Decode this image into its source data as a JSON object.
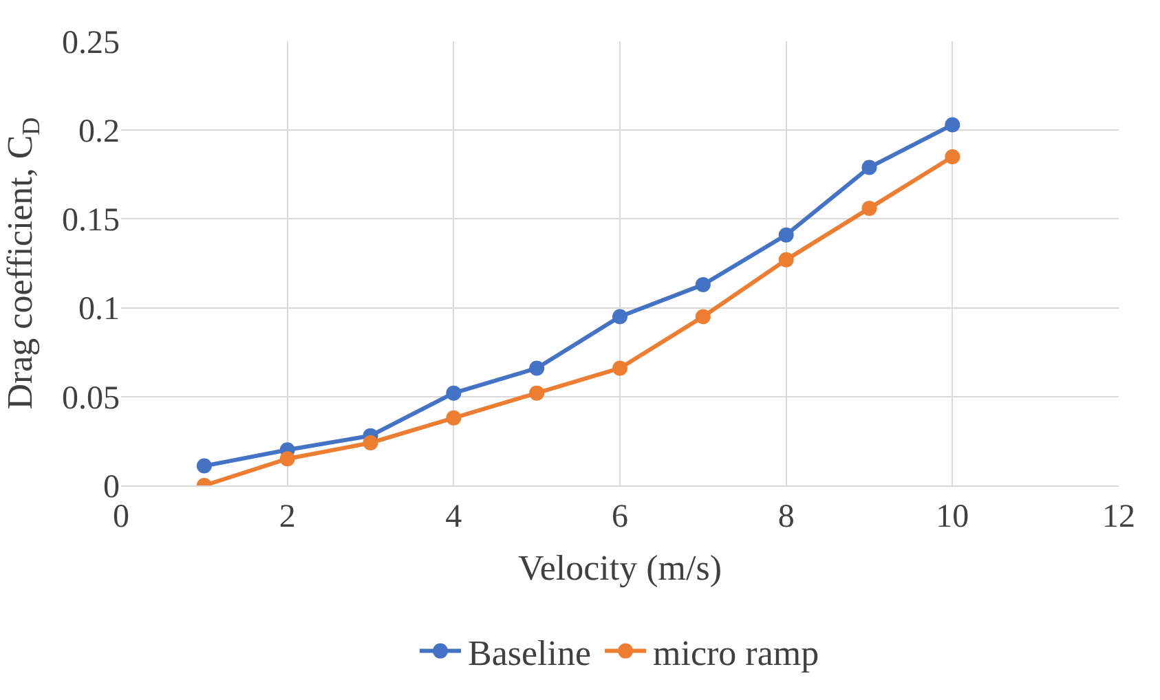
{
  "chart_data": {
    "type": "line",
    "xlabel": "Velocity (m/s)",
    "ylabel": "Drag coefficient, C$_{D}$",
    "x": [
      1,
      2,
      3,
      4,
      5,
      6,
      7,
      8,
      9,
      10
    ],
    "series": [
      {
        "name": "Baseline",
        "color": "#4472c4",
        "values": [
          0.011,
          0.02,
          0.028,
          0.052,
          0.066,
          0.095,
          0.113,
          0.141,
          0.179,
          0.203
        ]
      },
      {
        "name": "micro ramp",
        "color": "#ed7d31",
        "values": [
          0,
          0.015,
          0.024,
          0.038,
          0.052,
          0.066,
          0.095,
          0.127,
          0.156,
          0.185
        ]
      }
    ],
    "xlim": [
      0,
      12
    ],
    "xticks": [
      0,
      2,
      4,
      6,
      8,
      10,
      12
    ],
    "ylim": [
      0,
      0.25
    ],
    "yticks": [
      0,
      0.05,
      0.1,
      0.15,
      0.2,
      0.25
    ],
    "grid": true,
    "legend": "bottom",
    "marker": "circle",
    "line_style": "solid"
  }
}
